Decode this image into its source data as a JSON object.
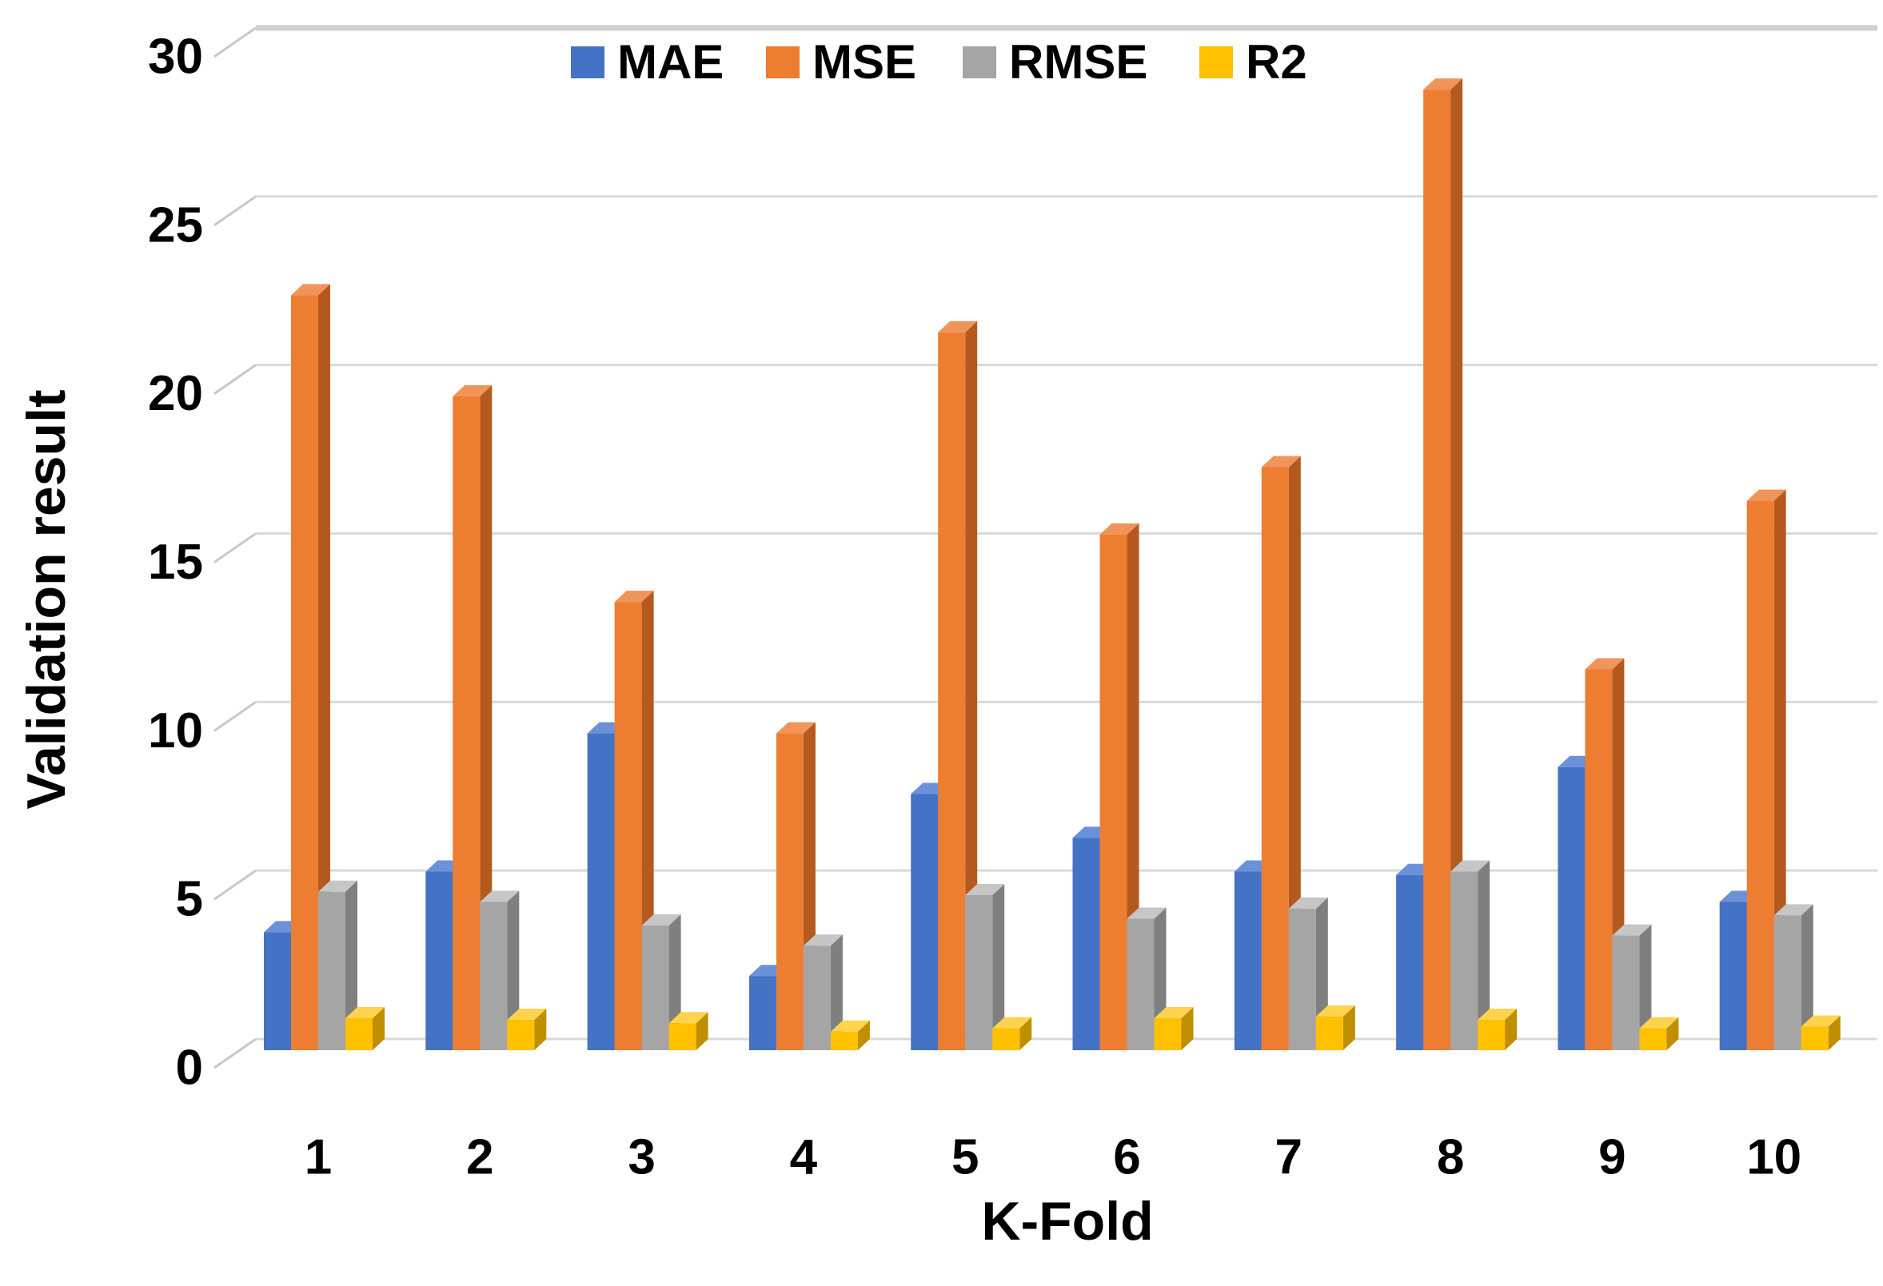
{
  "chart_data": {
    "type": "bar",
    "title": "",
    "xlabel": "K-Fold",
    "ylabel": "Validation result",
    "categories": [
      "1",
      "2",
      "3",
      "4",
      "5",
      "6",
      "7",
      "8",
      "9",
      "10"
    ],
    "series": [
      {
        "name": "MAE",
        "color": "#4472C4",
        "side_color": "#2E5597",
        "top_color": "#6B92D8",
        "values": [
          3.5,
          5.3,
          9.4,
          2.2,
          7.6,
          6.3,
          5.3,
          5.2,
          8.4,
          4.4
        ]
      },
      {
        "name": "MSE",
        "color": "#ED7D31",
        "side_color": "#B55A1F",
        "top_color": "#F0945A",
        "values": [
          22.4,
          19.4,
          13.3,
          9.4,
          21.3,
          15.3,
          17.3,
          28.5,
          11.3,
          16.3
        ]
      },
      {
        "name": "RMSE",
        "color": "#A5A5A5",
        "side_color": "#7F7F7F",
        "top_color": "#C6C6C6",
        "values": [
          4.7,
          4.4,
          3.7,
          3.1,
          4.6,
          3.9,
          4.2,
          5.3,
          3.4,
          4.0
        ]
      },
      {
        "name": "R2",
        "color": "#FFC000",
        "side_color": "#BF8F00",
        "top_color": "#FFD34D",
        "values": [
          0.95,
          0.9,
          0.8,
          0.55,
          0.65,
          0.95,
          1.0,
          0.9,
          0.65,
          0.7
        ]
      }
    ],
    "ylim": [
      0,
      30
    ],
    "ytick_step": 5,
    "yticks": [
      "0",
      "5",
      "10",
      "15",
      "20",
      "25",
      "30"
    ],
    "grid": true,
    "legend_position": "top",
    "gridline_color": "#D9D9D9",
    "top_gridline_color": "#CFCFCF",
    "tick_connector_color": "#C8C8C8",
    "text_color": "#000000",
    "background": "#FFFFFF"
  }
}
